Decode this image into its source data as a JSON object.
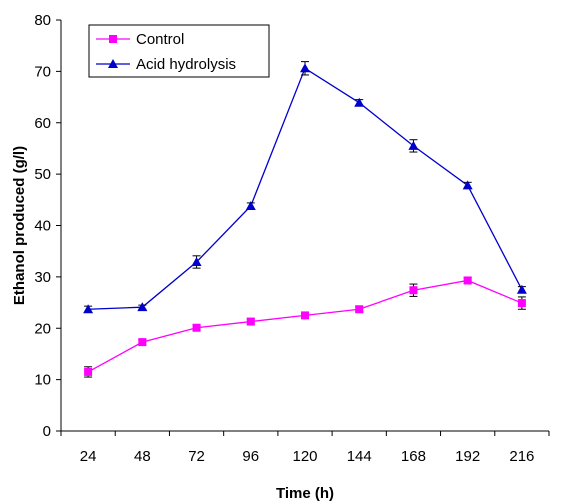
{
  "chart_data": {
    "type": "line",
    "xlabel": "Time (h)",
    "ylabel": "Ethanol produced (g/l)",
    "categories": [
      "24",
      "48",
      "72",
      "96",
      "120",
      "144",
      "168",
      "192",
      "216"
    ],
    "ylim": [
      0,
      80
    ],
    "yticks": [
      0,
      10,
      20,
      30,
      40,
      50,
      60,
      70,
      80
    ],
    "legend_position": "top-left",
    "series": [
      {
        "name": "Control",
        "color": "#ff00ff",
        "marker": "square",
        "values": [
          11.5,
          17.3,
          20.1,
          21.3,
          22.5,
          23.7,
          27.4,
          29.3,
          24.9
        ],
        "errors": [
          1.0,
          0.5,
          0.5,
          0.5,
          0.5,
          0.5,
          1.2,
          0.5,
          1.2
        ]
      },
      {
        "name": "Acid hydrolysis",
        "color": "#0000cc",
        "marker": "triangle",
        "values": [
          23.7,
          24.1,
          32.9,
          43.8,
          70.6,
          63.9,
          55.5,
          47.8,
          27.5
        ],
        "errors": [
          0.6,
          0.4,
          1.2,
          0.6,
          1.3,
          0.6,
          1.2,
          0.6,
          0.6
        ]
      }
    ]
  }
}
